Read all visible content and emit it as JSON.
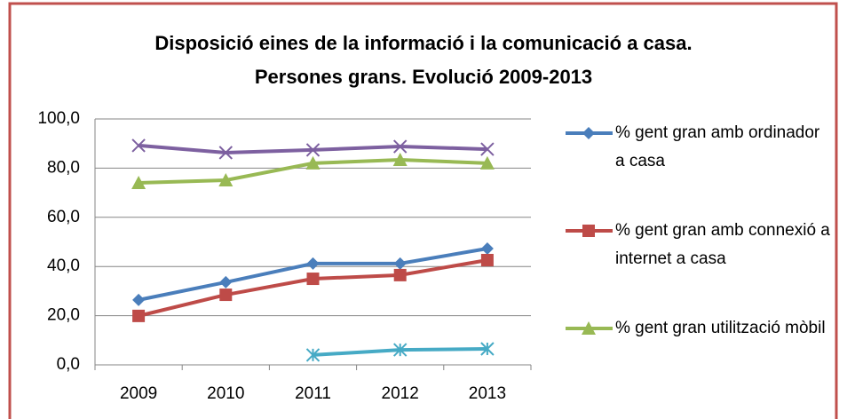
{
  "chart_data": {
    "type": "line",
    "title": [
      "Disposició eines de la informació i la comunicació a casa.",
      "Persones grans. Evolució 2009-2013"
    ],
    "categories": [
      "2009",
      "2010",
      "2011",
      "2012",
      "2013"
    ],
    "series": [
      {
        "name": "% gent gran amb ordinador a casa",
        "color": "#4a7ebb",
        "marker": "diamond",
        "values": [
          26.4,
          33.6,
          41.2,
          41.2,
          47.3
        ]
      },
      {
        "name": "% gent gran amb connexió a internet a casa",
        "color": "#be4b48",
        "marker": "square",
        "values": [
          19.9,
          28.5,
          35.0,
          36.5,
          42.6
        ]
      },
      {
        "name": "% gent gran utilització mòbil",
        "color": "#98b954",
        "marker": "triangle",
        "values": [
          74.0,
          75.1,
          82.0,
          83.4,
          82.0
        ]
      },
      {
        "color": "#7d60a0",
        "marker": "x",
        "values": [
          89.2,
          86.3,
          87.4,
          88.8,
          87.7
        ]
      },
      {
        "color": "#46aac5",
        "marker": "star",
        "values": [
          null,
          null,
          4.0,
          6.1,
          6.5
        ]
      }
    ],
    "ylim": [
      0,
      100
    ],
    "yticks": [
      {
        "value": 0,
        "label": "0,0"
      },
      {
        "value": 20,
        "label": "20,0"
      },
      {
        "value": 40,
        "label": "40,0"
      },
      {
        "value": 60,
        "label": "60,0"
      },
      {
        "value": 80,
        "label": "80,0"
      },
      {
        "value": 100,
        "label": "100,0"
      }
    ],
    "grid": true,
    "legend": "right"
  }
}
